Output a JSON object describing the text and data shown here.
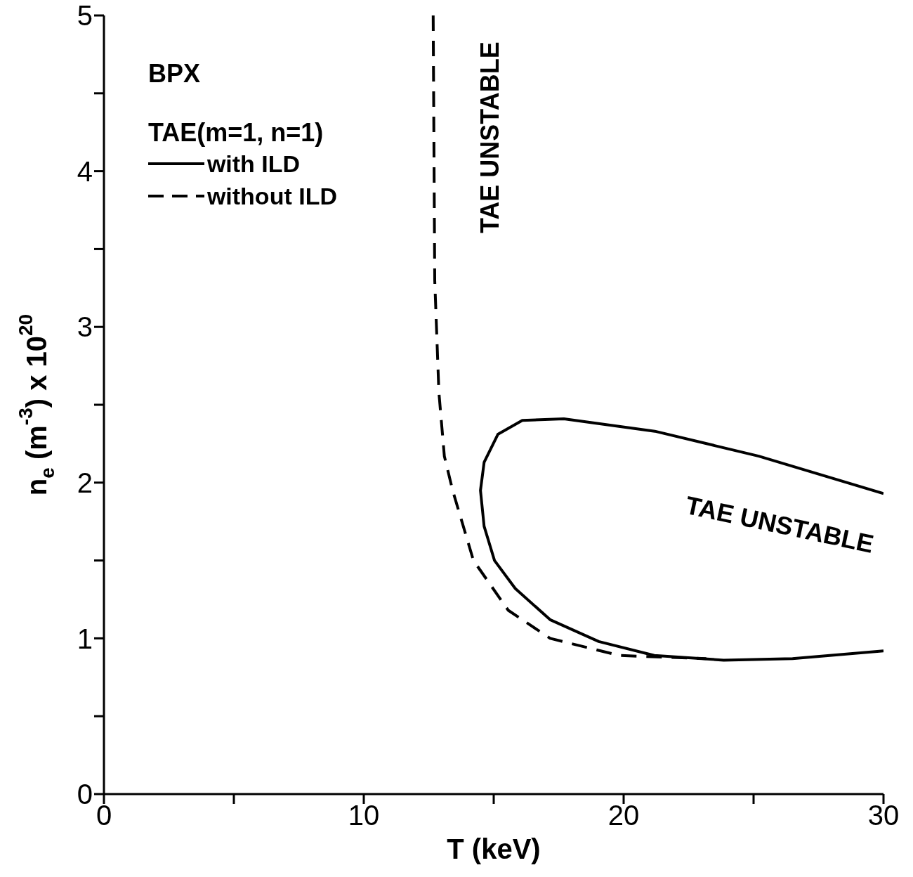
{
  "chart_data": {
    "type": "line",
    "xlabel": "T (keV)",
    "ylabel": "n$_{e}$ (m$^{-3}$) x 10$^{20}$",
    "xlim": [
      0,
      30
    ],
    "ylim": [
      0,
      5
    ],
    "xticks": [
      0,
      {
        "value": 5,
        "label": null
      },
      10,
      {
        "value": 15,
        "label": null
      },
      20,
      {
        "value": 25,
        "label": null
      },
      30
    ],
    "yticks": [
      0,
      {
        "value": 0.5,
        "label": null
      },
      1,
      {
        "value": 1.5,
        "label": null
      },
      2,
      {
        "value": 2.5,
        "label": null
      },
      3,
      {
        "value": 3.5,
        "label": null
      },
      4,
      {
        "value": 4.5,
        "label": null
      },
      5
    ],
    "legend": "top left",
    "marker": "none",
    "annotations": [
      "BPX",
      "TAE(m=1, n=1)",
      "TAE UNSTABLE",
      "TAE UNSTABLE"
    ],
    "series": [
      {
        "name": "with ILD",
        "color": "#000000",
        "line_style": "solid",
        "x": [
          30,
          25.2,
          21.2,
          17.7,
          16.1,
          15.16,
          14.63,
          14.49,
          14.63,
          15.03,
          15.83,
          17.17,
          19.04,
          21.18,
          23.85,
          26.5,
          30
        ],
        "values": [
          1.93,
          2.17,
          2.33,
          2.41,
          2.4,
          2.31,
          2.13,
          1.95,
          1.72,
          1.5,
          1.32,
          1.12,
          0.98,
          0.89,
          0.86,
          0.87,
          0.92
        ]
      },
      {
        "name": "without ILD",
        "color": "#000000",
        "line_style": "dashed",
        "x": [
          12.67,
          12.73,
          12.89,
          13.1,
          13.42,
          14.22,
          15.56,
          17.17,
          19.84,
          23.18
        ],
        "values": [
          5,
          3.3,
          2.58,
          2.17,
          1.95,
          1.5,
          1.18,
          1.0,
          0.89,
          0.87
        ]
      }
    ]
  }
}
